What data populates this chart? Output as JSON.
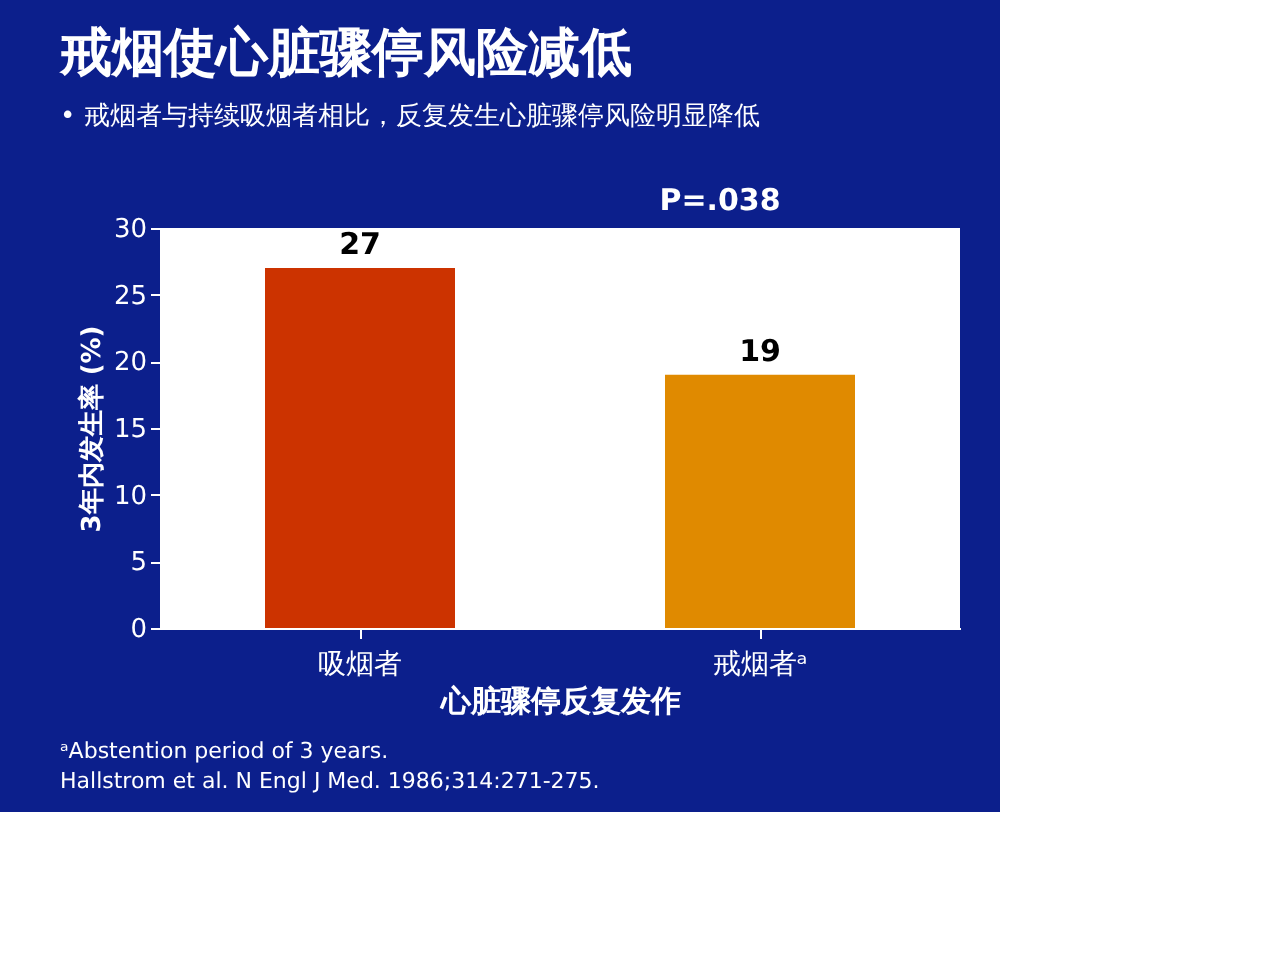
{
  "chart_data": {
    "type": "bar",
    "title": "戒烟使心脏骤停风险减低",
    "subtitle": "• 戒烟者与持续吸烟者相比，反复发生心脏骤停风险明显降低",
    "categories": [
      "吸烟者",
      "戒烟者ᵃ"
    ],
    "values": [
      27,
      19
    ],
    "colors": [
      "#cc3300",
      "#e08a00"
    ],
    "xlabel": "心脏骤停反复发作",
    "ylabel": "3年内发生率 (%)",
    "ylim": [
      0,
      30
    ],
    "yticks": [
      0,
      5,
      10,
      15,
      20,
      25,
      30
    ],
    "data_labels": true,
    "grid": false,
    "annotations": [
      "P=.038",
      "ᵃAbstention period of 3 years.",
      "Hallstrom et al. N Engl J Med. 1986;314:271-275."
    ]
  }
}
